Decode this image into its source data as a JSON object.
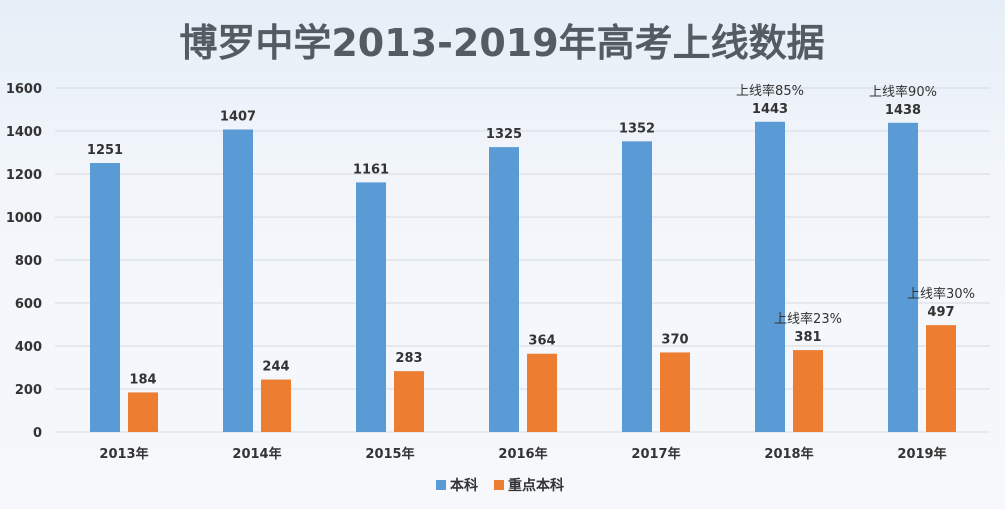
{
  "chart_data": {
    "type": "bar",
    "title": "博罗中学2013-2019年高考上线数据",
    "categories": [
      "2013年",
      "2014年",
      "2015年",
      "2016年",
      "2017年",
      "2018年",
      "2019年"
    ],
    "series": [
      {
        "name": "本科",
        "color": "#5b9bd5",
        "values": [
          1251,
          1407,
          1161,
          1325,
          1352,
          1443,
          1438
        ]
      },
      {
        "name": "重点本科",
        "color": "#ed7d31",
        "values": [
          184,
          244,
          283,
          364,
          370,
          381,
          497
        ]
      }
    ],
    "yticks": [
      "0",
      "200",
      "400",
      "600",
      "800",
      "1000",
      "1200",
      "1400",
      "1600"
    ],
    "ylim": [
      0,
      1600
    ],
    "grid": true,
    "legend_position": "bottom",
    "annotations": [
      {
        "series": 0,
        "category": 5,
        "text": "上线率85%"
      },
      {
        "series": 0,
        "category": 6,
        "text": "上线率90%"
      },
      {
        "series": 1,
        "category": 5,
        "text": "上线率23%"
      },
      {
        "series": 1,
        "category": 6,
        "text": "上线率30%"
      }
    ]
  }
}
